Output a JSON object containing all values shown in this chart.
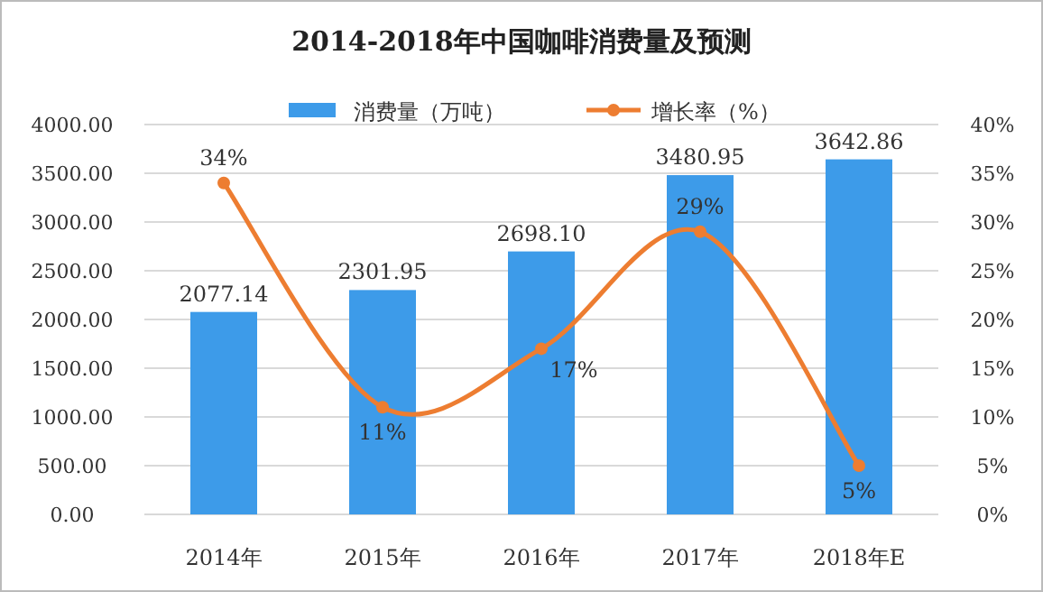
{
  "chart_data": {
    "type": "bar",
    "title": "2014-2018年中国咖啡消费量及预测",
    "categories": [
      "2014年",
      "2015年",
      "2016年",
      "2017年",
      "2018年E"
    ],
    "series": [
      {
        "name": "消费量（万吨）",
        "color": "#3d9be9",
        "values": [
          2077.14,
          2301.95,
          2698.1,
          3480.95,
          3642.86
        ],
        "value_labels": [
          "2077.14",
          "2301.95",
          "2698.10",
          "3480.95",
          "3642.86"
        ]
      },
      {
        "name": "增长率（%）",
        "type": "line",
        "axis": "y2",
        "color": "#ed7d31",
        "values": [
          34,
          11,
          17,
          29,
          5
        ],
        "value_labels": [
          "34%",
          "11%",
          "17%",
          "29%",
          "5%"
        ]
      }
    ],
    "ylim": [
      0,
      4000
    ],
    "yticks": [
      {
        "value": 0,
        "label": "0.00"
      },
      {
        "value": 500,
        "label": "500.00"
      },
      {
        "value": 1000,
        "label": "1000.00"
      },
      {
        "value": 1500,
        "label": "1500.00"
      },
      {
        "value": 2000,
        "label": "2000.00"
      },
      {
        "value": 2500,
        "label": "2500.00"
      },
      {
        "value": 3000,
        "label": "3000.00"
      },
      {
        "value": 3500,
        "label": "3500.00"
      },
      {
        "value": 4000,
        "label": "4000.00"
      }
    ],
    "y2lim": [
      0,
      40
    ],
    "y2ticks": [
      {
        "value": 0,
        "label": "0%"
      },
      {
        "value": 5,
        "label": "5%"
      },
      {
        "value": 10,
        "label": "10%"
      },
      {
        "value": 15,
        "label": "15%"
      },
      {
        "value": 20,
        "label": "20%"
      },
      {
        "value": 25,
        "label": "25%"
      },
      {
        "value": 30,
        "label": "30%"
      },
      {
        "value": 35,
        "label": "35%"
      },
      {
        "value": 40,
        "label": "40%"
      }
    ],
    "grid": "y",
    "legend": "top",
    "marker": "circle",
    "line_style": "solid"
  }
}
